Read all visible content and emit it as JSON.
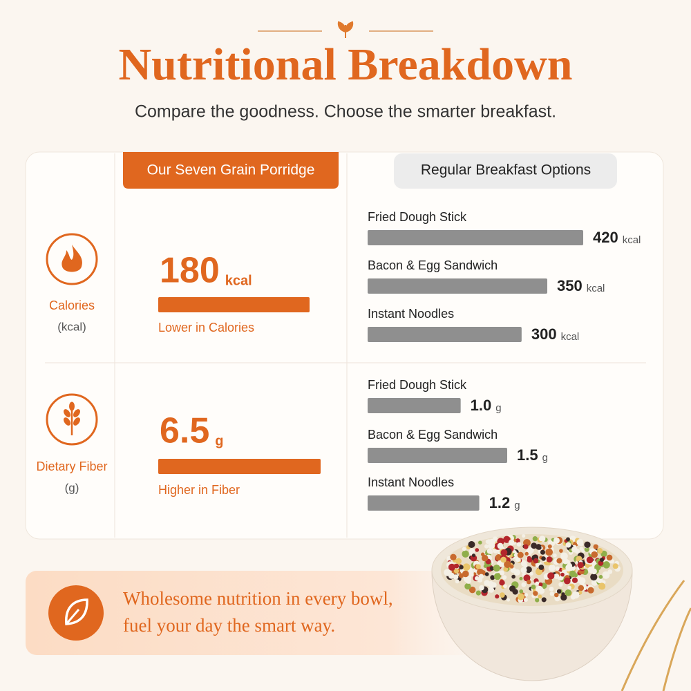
{
  "header": {
    "title": "Nutritional Breakdown",
    "subtitle": "Compare the goodness. Choose the smarter breakfast."
  },
  "columns": {
    "ours": "Our Seven Grain Porridge",
    "regular": "Regular Breakfast Options"
  },
  "rows": [
    {
      "metric": "Calories",
      "unit_label": "(kcal)",
      "unit": "kcal",
      "ours": {
        "value": 180,
        "note": "Lower in Calories"
      },
      "regular": [
        {
          "name": "Fried Dough Stick",
          "value": 420
        },
        {
          "name": "Bacon & Egg Sandwich",
          "value": 350
        },
        {
          "name": "Instant Noodles",
          "value": 300
        }
      ]
    },
    {
      "metric": "Dietary Fiber",
      "unit_label": "(g)",
      "unit": "g",
      "ours": {
        "value": 6.5,
        "note": "Higher in Fiber"
      },
      "regular": [
        {
          "name": "Fried Dough Stick",
          "value": 1,
          "value_label": "1.0"
        },
        {
          "name": "Bacon & Egg Sandwich",
          "value": 1.5
        },
        {
          "name": "Instant Noodles",
          "value": 1.2
        }
      ]
    }
  ],
  "banner": {
    "lines": [
      "Wholesome nutrition in every bowl,",
      "fuel your day the smart way."
    ]
  }
}
